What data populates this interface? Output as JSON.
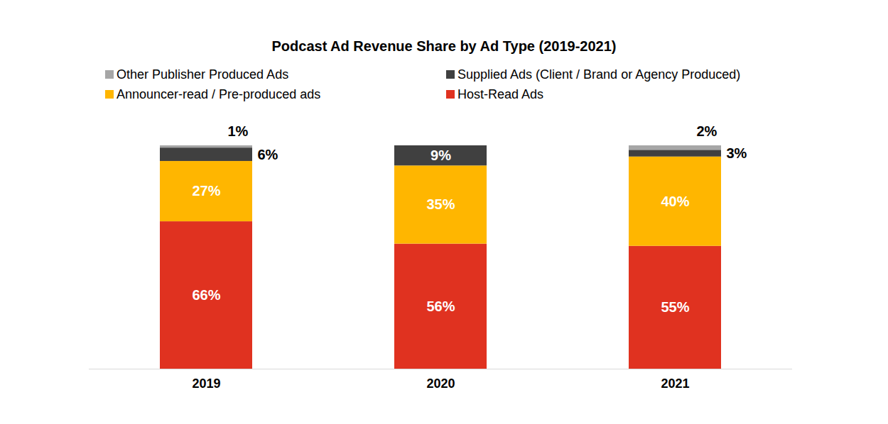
{
  "chart_data": {
    "type": "bar",
    "title": "Podcast Ad Revenue Share by Ad Type (2019-2021)",
    "categories": [
      "2019",
      "2020",
      "2021"
    ],
    "series": [
      {
        "name": "Host-Read Ads",
        "color": "#e03220",
        "values": [
          66,
          56,
          55
        ],
        "value_labels": [
          "66%",
          "56%",
          "55%"
        ]
      },
      {
        "name": "Announcer-read / Pre-produced ads",
        "color": "#ffb600",
        "values": [
          27,
          35,
          40
        ],
        "value_labels": [
          "27%",
          "35%",
          "40%"
        ]
      },
      {
        "name": "Supplied Ads (Client / Brand or Agency Produced)",
        "color": "#404040",
        "values": [
          6,
          9,
          3
        ],
        "value_labels": [
          "6%",
          "9%",
          "3%"
        ]
      },
      {
        "name": "Other Publisher Produced Ads",
        "color": "#a6a6a6",
        "values": [
          1,
          null,
          2
        ],
        "value_labels": [
          "1%",
          null,
          "2%"
        ]
      }
    ],
    "ylim": [
      0,
      100
    ],
    "stacked": true,
    "data_labels": true,
    "tick_labels": "x",
    "legend": "top"
  }
}
